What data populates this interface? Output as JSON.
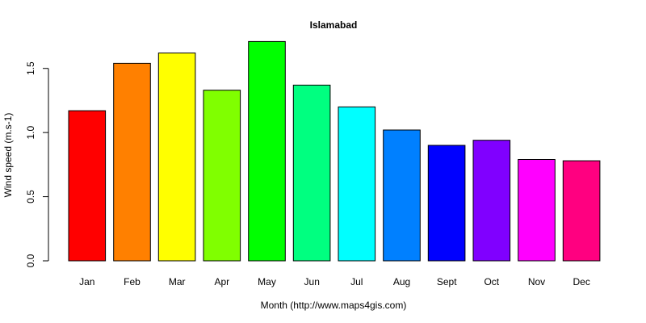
{
  "chart_data": {
    "type": "bar",
    "title": "Islamabad",
    "xlabel": "Month (http://www.maps4gis.com)",
    "ylabel": "Wind speed (m.s-1)",
    "categories": [
      "Jan",
      "Feb",
      "Mar",
      "Apr",
      "May",
      "Jun",
      "Jul",
      "Aug",
      "Sept",
      "Oct",
      "Nov",
      "Dec"
    ],
    "values": [
      1.17,
      1.54,
      1.62,
      1.33,
      1.71,
      1.37,
      1.2,
      1.02,
      0.9,
      0.94,
      0.79,
      0.78
    ],
    "colors": [
      "#ff0000",
      "#ff8000",
      "#ffff00",
      "#80ff00",
      "#00ff00",
      "#00ff80",
      "#00ffff",
      "#0080ff",
      "#0000ff",
      "#8000ff",
      "#ff00ff",
      "#ff0080"
    ],
    "ylim": [
      0,
      1.75
    ],
    "yticks": [
      "0.0",
      "0.5",
      "1.0",
      "1.5"
    ],
    "grid": false,
    "legend": "none"
  }
}
